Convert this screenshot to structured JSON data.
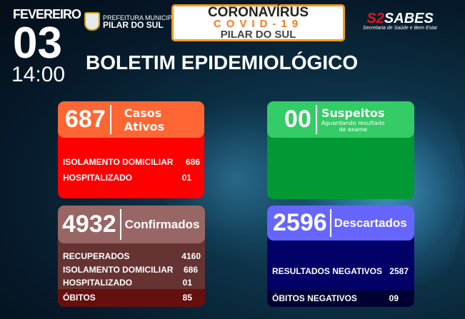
{
  "header": {
    "month": "FEVEREIRO",
    "day": "03",
    "time": "14:00",
    "prefeitura_line1": "PREFEITURA MUNICIPAL",
    "prefeitura_line2": "PILAR DO SUL",
    "banner": {
      "line1": "CORONAVÍRUS",
      "line2": "COVID-19",
      "line3": "PILAR DO SUL"
    },
    "sabes_logo": "SABES",
    "sabes_subtitle": "Secretaria de Saúde e Bem Estar",
    "title": "BOLETIM EPIDEMIOLÓGICO"
  },
  "cards": {
    "ativos": {
      "value": "687",
      "label1": "Casos",
      "label2": "Ativos",
      "rows": [
        {
          "label": "ISOLAMENTO DOMICILIAR",
          "value": "686"
        },
        {
          "label": "HOSPITALIZADO",
          "value": "01"
        }
      ],
      "colors": {
        "header": "#ff6633",
        "body": "#ff0000"
      }
    },
    "suspeitos": {
      "value": "00",
      "label": "Suspeitos",
      "sub1": "Aguardando resultado",
      "sub2": "de exame",
      "colors": {
        "header": "#33cc66",
        "body": "#009933"
      }
    },
    "confirmados": {
      "value": "4932",
      "label": "Confirmados",
      "rows": [
        {
          "label": "RECUPERADOS",
          "value": "4160"
        },
        {
          "label": "ISOLAMENTO DOMICILIAR",
          "value": "686"
        },
        {
          "label": "HOSPITALIZADO",
          "value": "01"
        }
      ],
      "obitos": {
        "label": "ÓBITOS",
        "value": "85"
      },
      "colors": {
        "header": "#996666",
        "body": "#663333",
        "obitos": "#660f0f"
      }
    },
    "descartados": {
      "value": "2596",
      "label": "Descartados",
      "rows": [
        {
          "label": "RESULTADOS NEGATIVOS",
          "value": "2587"
        }
      ],
      "obitos": {
        "label": "ÓBITOS NEGATIVOS",
        "value": "09"
      },
      "colors": {
        "header": "#6666ff",
        "body": "#000066",
        "obitos": "#000033"
      }
    }
  }
}
